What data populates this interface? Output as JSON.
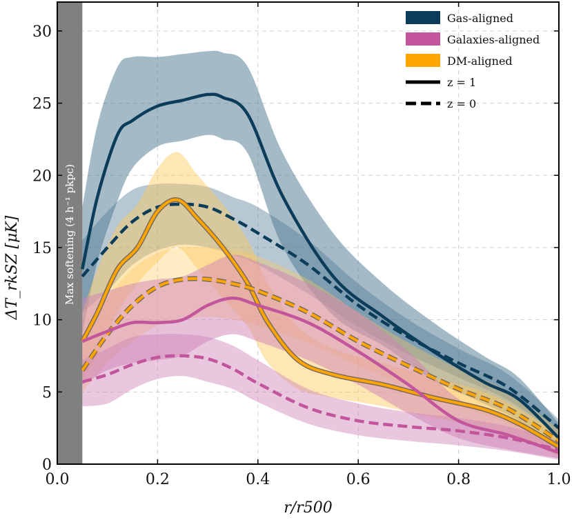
{
  "chart_data": {
    "type": "line",
    "title": "",
    "xlabel": "r/r500",
    "ylabel": "ΔT_rkSZ [μK]",
    "xlim": [
      0.0,
      1.0
    ],
    "ylim": [
      0,
      32
    ],
    "x_ticks": [
      "0.0",
      "0.2",
      "0.4",
      "0.6",
      "0.8",
      "1.0"
    ],
    "y_ticks": [
      "0",
      "5",
      "10",
      "15",
      "20",
      "25",
      "30"
    ],
    "grid": true,
    "legend_position": "top-right",
    "softening": {
      "x_max": 0.05,
      "label": "Max softening (4 h⁻¹ pkpc)"
    },
    "legend": [
      {
        "label": "Gas-aligned",
        "kind": "patch",
        "color": "#0b3d5a"
      },
      {
        "label": "Galaxies-aligned",
        "kind": "patch",
        "color": "#c2559b"
      },
      {
        "label": "DM-aligned",
        "kind": "patch",
        "color": "#ffa500"
      },
      {
        "label": "z = 1",
        "kind": "solid-line",
        "color": "#000000"
      },
      {
        "label": "z = 0",
        "kind": "dashed-line",
        "color": "#000000"
      }
    ],
    "series": [
      {
        "name": "Gas-aligned z=1",
        "color": "#0b3d5a",
        "fill": "#4a7690",
        "fill_opacity": 0.5,
        "dashed": false,
        "x": [
          0.05,
          0.08,
          0.12,
          0.15,
          0.2,
          0.25,
          0.3,
          0.33,
          0.38,
          0.45,
          0.55,
          0.65,
          0.75,
          0.85,
          0.92,
          1.0
        ],
        "y": [
          13.5,
          18.5,
          22.8,
          23.8,
          24.8,
          25.2,
          25.6,
          25.4,
          24.2,
          18.5,
          13.0,
          10.2,
          7.8,
          5.7,
          4.5,
          1.8
        ],
        "lower": [
          9,
          14,
          18.2,
          20.5,
          22,
          22.4,
          22.8,
          22.5,
          21.5,
          15,
          10.3,
          8.2,
          5.8,
          4.2,
          3.0,
          1.0
        ],
        "upper": [
          17.8,
          23.5,
          27.5,
          28.2,
          28.2,
          28.4,
          28.6,
          28.5,
          27.5,
          21.5,
          16.0,
          12.5,
          9.8,
          7.5,
          6.0,
          2.8
        ]
      },
      {
        "name": "Gas-aligned z=0",
        "color": "#0b3d5a",
        "fill": "#4a7690",
        "fill_opacity": 0.4,
        "dashed": true,
        "x": [
          0.05,
          0.1,
          0.15,
          0.2,
          0.25,
          0.3,
          0.35,
          0.4,
          0.5,
          0.6,
          0.7,
          0.8,
          0.9,
          1.0
        ],
        "y": [
          13.0,
          15.0,
          16.8,
          17.8,
          18.0,
          17.8,
          17.0,
          16.0,
          13.8,
          11.0,
          8.8,
          7.0,
          5.3,
          2.5
        ],
        "lower": [
          10.5,
          12.0,
          13.8,
          14.8,
          15.2,
          15.0,
          14.5,
          13.8,
          11.8,
          9.5,
          7.6,
          6.0,
          4.4,
          2.0
        ],
        "upper": [
          15.5,
          17.5,
          19.0,
          19.4,
          19.4,
          19.2,
          18.5,
          17.8,
          15.5,
          12.5,
          10.0,
          8.0,
          6.2,
          3.1
        ]
      },
      {
        "name": "DM-aligned z=1",
        "color": "#ffa500",
        "fill": "#ffc85a",
        "fill_opacity": 0.45,
        "dashed": false,
        "x": [
          0.05,
          0.08,
          0.12,
          0.16,
          0.2,
          0.24,
          0.28,
          0.33,
          0.38,
          0.42,
          0.48,
          0.55,
          0.65,
          0.75,
          0.85,
          0.92,
          1.0
        ],
        "y": [
          8.5,
          10.5,
          13.5,
          15.0,
          17.5,
          18.3,
          17.0,
          15.0,
          12.5,
          9.8,
          7.2,
          6.2,
          5.5,
          4.6,
          3.8,
          2.8,
          1.2
        ],
        "lower": [
          6,
          7.5,
          10.5,
          12.5,
          14,
          15,
          13.5,
          11.5,
          9.5,
          7.0,
          5.2,
          4.6,
          4.0,
          3.2,
          2.6,
          1.8,
          0.5
        ],
        "upper": [
          10.5,
          13.5,
          16.5,
          18.0,
          20.5,
          21.6,
          20.0,
          18.0,
          15.5,
          12.5,
          9.5,
          8.0,
          7.0,
          6.0,
          5.0,
          3.8,
          2.0
        ]
      },
      {
        "name": "DM-aligned z=0",
        "color": "#ffa500",
        "fill": "#ffc85a",
        "fill_opacity": 0.35,
        "dashed": true,
        "x": [
          0.05,
          0.1,
          0.15,
          0.2,
          0.25,
          0.3,
          0.35,
          0.4,
          0.5,
          0.6,
          0.7,
          0.8,
          0.9,
          1.0
        ],
        "y": [
          6.5,
          9.0,
          11.0,
          12.3,
          12.8,
          12.8,
          12.5,
          12.0,
          10.5,
          8.5,
          6.8,
          5.2,
          3.8,
          1.6
        ],
        "lower": [
          5.0,
          7.0,
          8.5,
          9.6,
          10.0,
          10.2,
          10.0,
          9.6,
          8.4,
          6.8,
          5.4,
          4.0,
          2.8,
          1.0
        ],
        "upper": [
          8.5,
          11.5,
          13.5,
          14.6,
          15.0,
          15.0,
          14.8,
          14.4,
          12.8,
          10.5,
          8.4,
          6.6,
          5.0,
          2.4
        ]
      },
      {
        "name": "Galaxies-aligned z=1",
        "color": "#c2559b",
        "fill": "#cf82b6",
        "fill_opacity": 0.5,
        "dashed": false,
        "x": [
          0.05,
          0.1,
          0.15,
          0.2,
          0.25,
          0.3,
          0.35,
          0.4,
          0.5,
          0.6,
          0.7,
          0.8,
          0.9,
          1.0
        ],
        "y": [
          8.5,
          9.2,
          9.8,
          9.8,
          10.0,
          11.0,
          11.5,
          11.0,
          9.8,
          7.8,
          5.5,
          3.0,
          2.0,
          0.8
        ],
        "lower": [
          5.5,
          6.5,
          7.0,
          7.2,
          7.5,
          8.5,
          9.0,
          8.5,
          7.2,
          5.5,
          3.5,
          1.8,
          1.0,
          0.4
        ],
        "upper": [
          11.5,
          12.0,
          12.5,
          12.8,
          13.0,
          13.8,
          14.5,
          14.0,
          12.5,
          10.5,
          7.8,
          4.5,
          3.0,
          1.2
        ]
      },
      {
        "name": "Galaxies-aligned z=0",
        "color": "#c2559b",
        "fill": "#cf82b6",
        "fill_opacity": 0.45,
        "dashed": true,
        "x": [
          0.05,
          0.1,
          0.15,
          0.2,
          0.25,
          0.3,
          0.35,
          0.4,
          0.5,
          0.6,
          0.7,
          0.8,
          0.9,
          1.0
        ],
        "y": [
          5.7,
          6.2,
          6.9,
          7.4,
          7.5,
          7.3,
          6.6,
          5.6,
          3.9,
          3.0,
          2.6,
          2.3,
          1.8,
          1.0
        ],
        "lower": [
          4.0,
          4.2,
          5.2,
          5.9,
          6.1,
          5.7,
          5.2,
          4.3,
          2.8,
          2.0,
          1.6,
          1.3,
          0.9,
          0.3
        ],
        "upper": [
          7.2,
          8.0,
          8.8,
          9.0,
          9.0,
          8.8,
          8.2,
          7.2,
          5.2,
          4.2,
          3.6,
          3.2,
          2.6,
          1.6
        ]
      }
    ]
  }
}
